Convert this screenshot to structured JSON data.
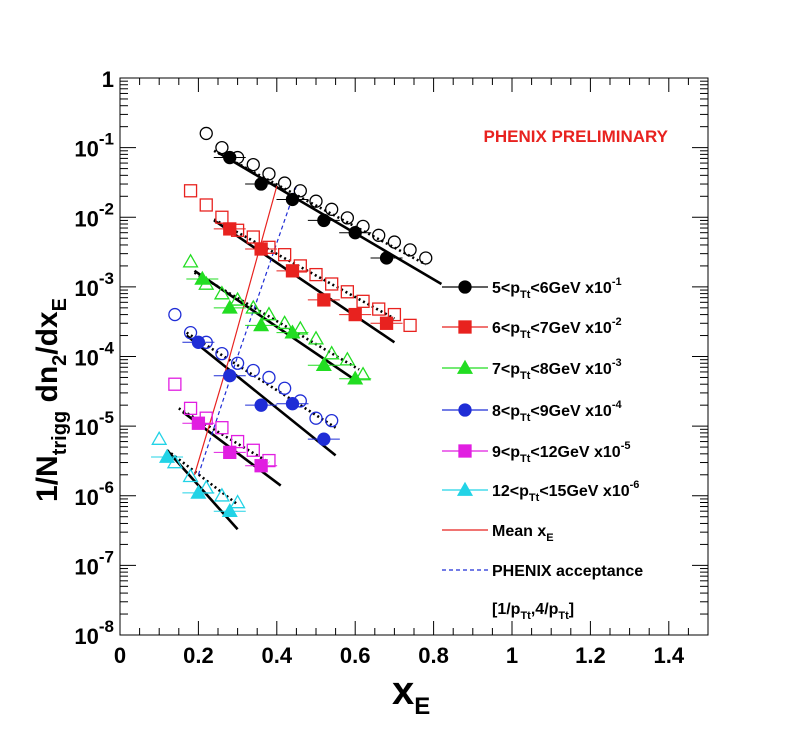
{
  "chart_data": {
    "type": "scatter",
    "title": "",
    "annotation": "PHENIX PRELIMINARY",
    "xlabel": {
      "main": "x",
      "sub": "E"
    },
    "ylabel": {
      "p1": "1/N",
      "sub1": "trigg",
      "p2": " dn",
      "sub2": "2",
      "p3": "/dx",
      "sub3": "E"
    },
    "xlim": [
      0,
      1.5
    ],
    "ylim": [
      1e-08,
      1
    ],
    "yscale": "log",
    "x_ticks": [
      {
        "v": 0,
        "label": "0"
      },
      {
        "v": 0.2,
        "label": "0.2"
      },
      {
        "v": 0.4,
        "label": "0.4"
      },
      {
        "v": 0.6,
        "label": "0.6"
      },
      {
        "v": 0.8,
        "label": "0.8"
      },
      {
        "v": 1.0,
        "label": "1"
      },
      {
        "v": 1.2,
        "label": "1.2"
      },
      {
        "v": 1.4,
        "label": "1.4"
      }
    ],
    "y_ticks": [
      {
        "exp": 0,
        "base": "1",
        "sup": ""
      },
      {
        "exp": -1,
        "base": "10",
        "sup": "-1"
      },
      {
        "exp": -2,
        "base": "10",
        "sup": "-2"
      },
      {
        "exp": -3,
        "base": "10",
        "sup": "-3"
      },
      {
        "exp": -4,
        "base": "10",
        "sup": "-4"
      },
      {
        "exp": -5,
        "base": "10",
        "sup": "-5"
      },
      {
        "exp": -6,
        "base": "10",
        "sup": "-6"
      },
      {
        "exp": -7,
        "base": "10",
        "sup": "-7"
      },
      {
        "exp": -8,
        "base": "10",
        "sup": "-8"
      }
    ],
    "grid": false,
    "legend_position": "right",
    "series": [
      {
        "legend": {
          "a": "5<p",
          "sub": "Tt",
          "b": "<6GeV x10",
          "sup": "-1"
        },
        "color": "#000000",
        "marker": "circle",
        "filled": {
          "x": [
            0.28,
            0.36,
            0.44,
            0.52,
            0.6,
            0.68
          ],
          "y": [
            0.072,
            0.03,
            0.018,
            0.009,
            0.006,
            0.0026
          ]
        },
        "open": {
          "x": [
            0.22,
            0.26,
            0.3,
            0.34,
            0.38,
            0.42,
            0.46,
            0.5,
            0.54,
            0.58,
            0.62,
            0.66,
            0.7,
            0.74,
            0.78
          ],
          "y": [
            0.16,
            0.1,
            0.072,
            0.057,
            0.042,
            0.031,
            0.024,
            0.017,
            0.013,
            0.0098,
            0.0074,
            0.0055,
            0.0044,
            0.0034,
            0.0026
          ]
        },
        "fit_filled": {
          "x": [
            0.25,
            0.82
          ],
          "y": [
            0.085,
            0.0011
          ]
        },
        "fit_open": {
          "x": [
            0.24,
            0.78
          ],
          "y": [
            0.09,
            0.0021
          ]
        }
      },
      {
        "legend": {
          "a": "6<p",
          "sub": "Tt",
          "b": "<7GeV x10",
          "sup": "-2"
        },
        "color": "#e8221f",
        "marker": "square",
        "filled": {
          "x": [
            0.28,
            0.36,
            0.44,
            0.52,
            0.6,
            0.68
          ],
          "y": [
            0.0068,
            0.0035,
            0.0017,
            0.00065,
            0.0004,
            0.0003
          ]
        },
        "open": {
          "x": [
            0.18,
            0.22,
            0.26,
            0.3,
            0.34,
            0.38,
            0.42,
            0.46,
            0.5,
            0.54,
            0.58,
            0.62,
            0.66,
            0.7,
            0.74
          ],
          "y": [
            0.024,
            0.015,
            0.01,
            0.0065,
            0.0052,
            0.0037,
            0.0029,
            0.002,
            0.0015,
            0.0011,
            0.00085,
            0.00062,
            0.00048,
            0.0004,
            0.00028
          ]
        },
        "fit_filled": {
          "x": [
            0.24,
            0.7
          ],
          "y": [
            0.009,
            0.00016
          ]
        },
        "fit_open": {
          "x": [
            0.24,
            0.7
          ],
          "y": [
            0.0093,
            0.00035
          ]
        }
      },
      {
        "legend": {
          "a": "7<p",
          "sub": "Tt",
          "b": "<8GeV x10",
          "sup": "-3"
        },
        "color": "#22dd22",
        "marker": "triangle",
        "filled": {
          "x": [
            0.21,
            0.28,
            0.36,
            0.44,
            0.52,
            0.6
          ],
          "y": [
            0.0013,
            0.0005,
            0.00028,
            0.00022,
            7.5e-05,
            4.8e-05
          ]
        },
        "open": {
          "x": [
            0.18,
            0.22,
            0.26,
            0.3,
            0.34,
            0.38,
            0.42,
            0.46,
            0.5,
            0.54,
            0.58,
            0.62
          ],
          "y": [
            0.0023,
            0.0011,
            0.0008,
            0.00065,
            0.0005,
            0.0004,
            0.0003,
            0.00025,
            0.00018,
            0.00011,
            9e-05,
            5.5e-05
          ]
        },
        "fit_filled": {
          "x": [
            0.19,
            0.61
          ],
          "y": [
            0.0017,
            4.2e-05
          ]
        },
        "fit_open": {
          "x": [
            0.19,
            0.61
          ],
          "y": [
            0.0016,
            6.5e-05
          ]
        }
      },
      {
        "legend": {
          "a": "8<p",
          "sub": "Tt",
          "b": "<9GeV x10",
          "sup": "-4"
        },
        "color": "#1f2dd6",
        "marker": "circle",
        "filled": {
          "x": [
            0.2,
            0.28,
            0.36,
            0.44,
            0.52
          ],
          "y": [
            0.00016,
            5.3e-05,
            2e-05,
            2.1e-05,
            6.5e-06
          ]
        },
        "open": {
          "x": [
            0.14,
            0.18,
            0.22,
            0.26,
            0.3,
            0.34,
            0.38,
            0.42,
            0.46,
            0.5,
            0.54
          ],
          "y": [
            0.0004,
            0.00022,
            0.00016,
            0.00011,
            8e-05,
            6.3e-05,
            5e-05,
            3.5e-05,
            2.3e-05,
            1.3e-05,
            1.2e-05
          ]
        },
        "fit_filled": {
          "x": [
            0.17,
            0.55
          ],
          "y": [
            0.0002,
            3.8e-06
          ]
        },
        "fit_open": {
          "x": [
            0.17,
            0.55
          ],
          "y": [
            0.00022,
            9.5e-06
          ]
        }
      },
      {
        "legend": {
          "a": "9<p",
          "sub": "Tt",
          "b": "<12GeV x10",
          "sup": "-5"
        },
        "color": "#e11ee1",
        "marker": "square",
        "filled": {
          "x": [
            0.2,
            0.28,
            0.36
          ],
          "y": [
            1.1e-05,
            4.2e-06,
            2.7e-06
          ]
        },
        "open": {
          "x": [
            0.14,
            0.18,
            0.22,
            0.26,
            0.3,
            0.34,
            0.38
          ],
          "y": [
            4e-05,
            1.8e-05,
            1.3e-05,
            9.5e-06,
            6e-06,
            4.5e-06,
            3.2e-06
          ]
        },
        "fit_filled": {
          "x": [
            0.16,
            0.41
          ],
          "y": [
            1.6e-05,
            1.4e-06
          ]
        },
        "fit_open": {
          "x": [
            0.15,
            0.38
          ],
          "y": [
            1.8e-05,
            3e-06
          ]
        }
      },
      {
        "legend": {
          "a": "12<p",
          "sub": "Tt",
          "b": "<15GeV x10",
          "sup": "-6"
        },
        "color": "#22d3e6",
        "marker": "triangle",
        "filled": {
          "x": [
            0.12,
            0.2,
            0.28
          ],
          "y": [
            3.6e-06,
            1.1e-06,
            6e-07
          ]
        },
        "open": {
          "x": [
            0.1,
            0.14,
            0.18,
            0.22,
            0.26,
            0.3
          ],
          "y": [
            6.5e-06,
            3e-06,
            1.9e-06,
            1.3e-06,
            1e-06,
            8e-07
          ]
        },
        "fit_filled": {
          "x": [
            0.12,
            0.3
          ],
          "y": [
            4.5e-06,
            3.3e-07
          ]
        },
        "fit_open": {
          "x": [
            0.12,
            0.3
          ],
          "y": [
            4.5e-06,
            7.5e-07
          ]
        }
      }
    ],
    "mean_xE": {
      "legend": {
        "a": "Mean x",
        "sub": "E"
      },
      "color": "#e8221f",
      "x": [
        0.19,
        0.28,
        0.4
      ],
      "y": [
        2e-06,
        0.0001,
        0.028
      ]
    },
    "acceptance": {
      "legend": {
        "a": "PHENIX acceptance"
      },
      "range_label": {
        "a": "[1/p",
        "sub1": "Tt",
        "b": ",4/p",
        "sub2": "Tt",
        "c": "]"
      },
      "color": "#1f2dd6",
      "x": [
        0.2,
        0.3,
        0.45
      ],
      "y": [
        2e-06,
        0.0001,
        0.028
      ]
    }
  }
}
